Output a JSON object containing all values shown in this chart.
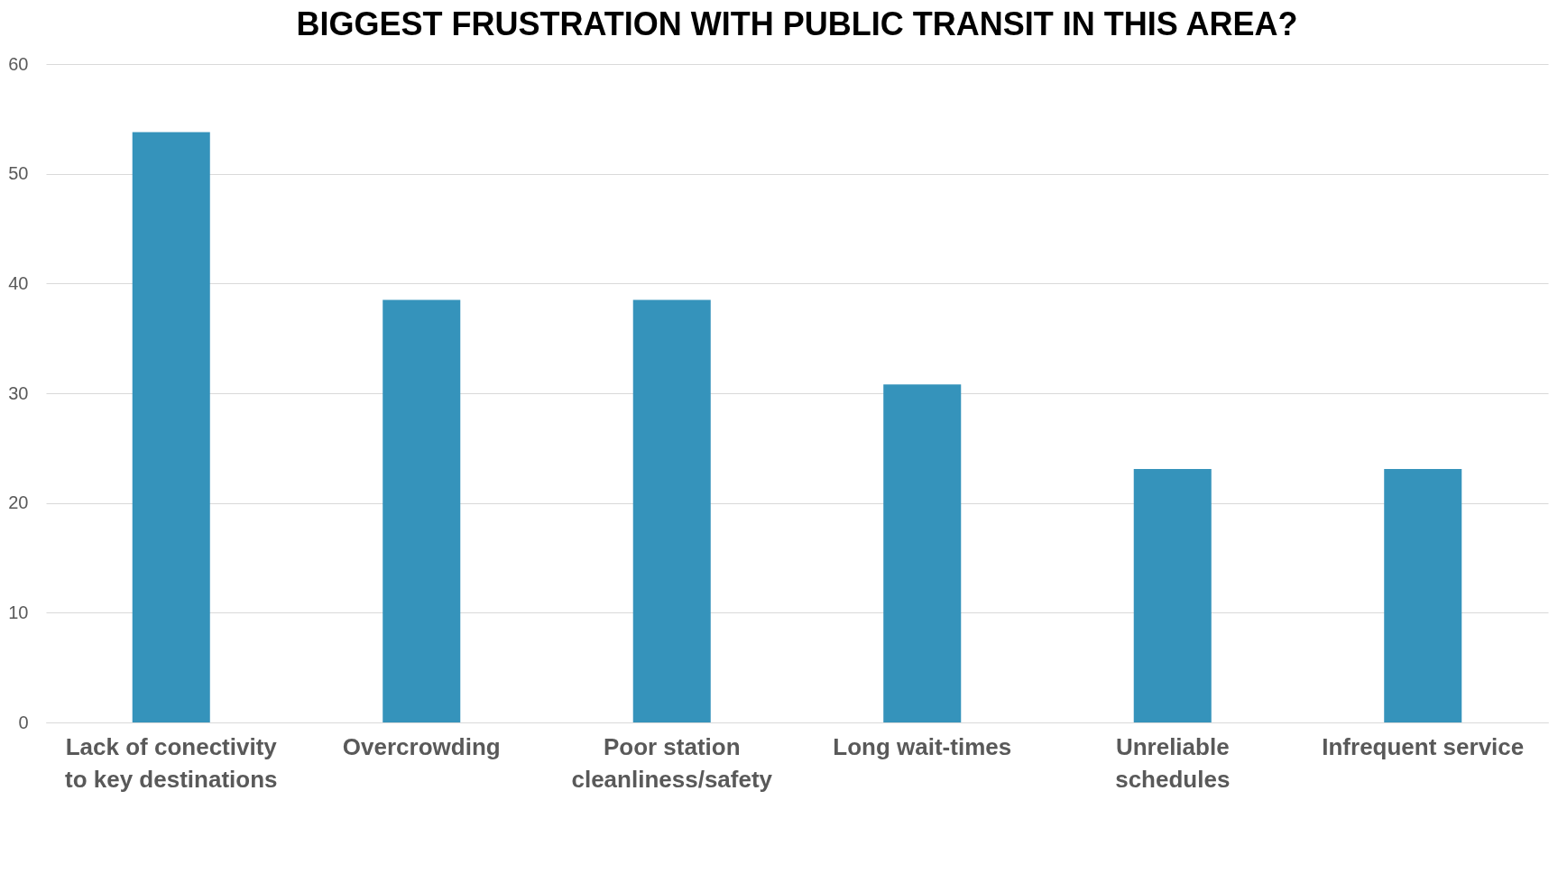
{
  "chart_data": {
    "type": "bar",
    "title": "BIGGEST FRUSTRATION WITH PUBLIC TRANSIT IN THIS AREA?",
    "categories": [
      "Lack of conectivity to key destinations",
      "Overcrowding",
      "Poor station cleanliness/safety",
      "Long wait-times",
      "Unreliable schedules",
      "Infrequent service"
    ],
    "values": [
      53.8,
      38.5,
      38.5,
      30.8,
      23.1,
      23.1
    ],
    "color": "#3593bb",
    "ylim": [
      0,
      60
    ],
    "yticks": [
      0,
      10,
      20,
      30,
      40,
      50,
      60
    ],
    "grid": "y"
  }
}
